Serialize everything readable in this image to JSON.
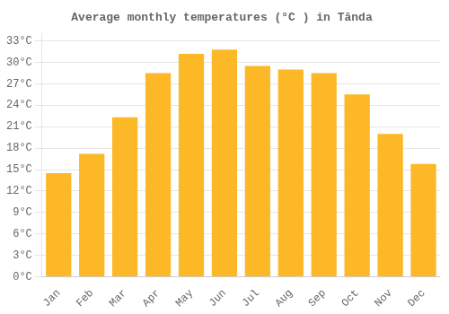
{
  "chart_data": {
    "type": "bar",
    "title": "Average monthly temperatures (°C ) in Tānda",
    "categories": [
      "Jan",
      "Feb",
      "Mar",
      "Apr",
      "May",
      "Jun",
      "Jul",
      "Aug",
      "Sep",
      "Oct",
      "Nov",
      "Dec"
    ],
    "values": [
      14.5,
      17.2,
      22.3,
      28.5,
      31.2,
      31.8,
      29.5,
      29.0,
      28.5,
      25.5,
      20.0,
      15.8
    ],
    "color": "#FDB827",
    "ylim": [
      0,
      34
    ],
    "yticks": [
      {
        "value": 0,
        "label": "0°C"
      },
      {
        "value": 3,
        "label": "3°C"
      },
      {
        "value": 6,
        "label": "6°C"
      },
      {
        "value": 9,
        "label": "9°C"
      },
      {
        "value": 12,
        "label": "12°C"
      },
      {
        "value": 15,
        "label": "15°C"
      },
      {
        "value": 18,
        "label": "18°C"
      },
      {
        "value": 21,
        "label": "21°C"
      },
      {
        "value": 24,
        "label": "24°C"
      },
      {
        "value": 27,
        "label": "27°C"
      },
      {
        "value": 30,
        "label": "30°C"
      },
      {
        "value": 33,
        "label": "33°C"
      }
    ],
    "grid": true
  }
}
